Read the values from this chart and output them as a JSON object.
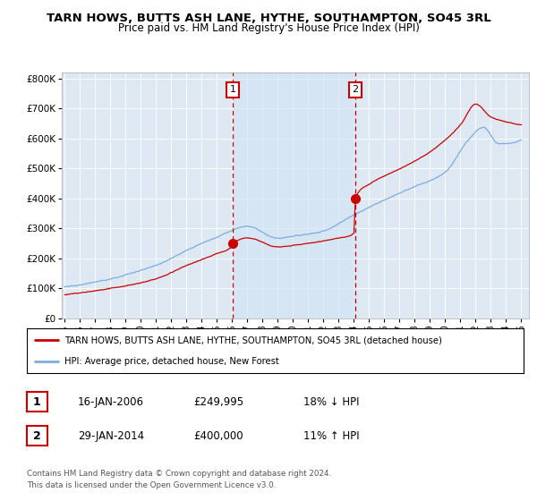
{
  "title": "TARN HOWS, BUTTS ASH LANE, HYTHE, SOUTHAMPTON, SO45 3RL",
  "subtitle": "Price paid vs. HM Land Registry's House Price Index (HPI)",
  "ylabel_ticks": [
    "£0",
    "£100K",
    "£200K",
    "£300K",
    "£400K",
    "£500K",
    "£600K",
    "£700K",
    "£800K"
  ],
  "ytick_vals": [
    0,
    100000,
    200000,
    300000,
    400000,
    500000,
    600000,
    700000,
    800000
  ],
  "ylim": [
    0,
    820000
  ],
  "xlim_start": 1994.8,
  "xlim_end": 2025.5,
  "xtick_years": [
    1995,
    1996,
    1997,
    1998,
    1999,
    2000,
    2001,
    2002,
    2003,
    2004,
    2005,
    2006,
    2007,
    2008,
    2009,
    2010,
    2011,
    2012,
    2013,
    2014,
    2015,
    2016,
    2017,
    2018,
    2019,
    2020,
    2021,
    2022,
    2023,
    2024,
    2025
  ],
  "red_line_color": "#cc0000",
  "blue_line_color": "#7aade0",
  "transaction1_x": 2006.04,
  "transaction1_y": 249995,
  "transaction2_x": 2014.08,
  "transaction2_y": 400000,
  "vline1_x": 2006.04,
  "vline2_x": 2014.08,
  "vline_color": "#cc0000",
  "shade_color": "#d0e4f5",
  "shade_alpha": 0.6,
  "legend_label_red": "TARN HOWS, BUTTS ASH LANE, HYTHE, SOUTHAMPTON, SO45 3RL (detached house)",
  "legend_label_blue": "HPI: Average price, detached house, New Forest",
  "info1_date": "16-JAN-2006",
  "info1_price": "£249,995",
  "info1_hpi": "18% ↓ HPI",
  "info2_date": "29-JAN-2014",
  "info2_price": "£400,000",
  "info2_hpi": "11% ↑ HPI",
  "footer": "Contains HM Land Registry data © Crown copyright and database right 2024.\nThis data is licensed under the Open Government Licence v3.0.",
  "plot_bg_color": "#dde8f3",
  "grid_color": "#ffffff",
  "title_fontsize": 9.5,
  "subtitle_fontsize": 8.5
}
